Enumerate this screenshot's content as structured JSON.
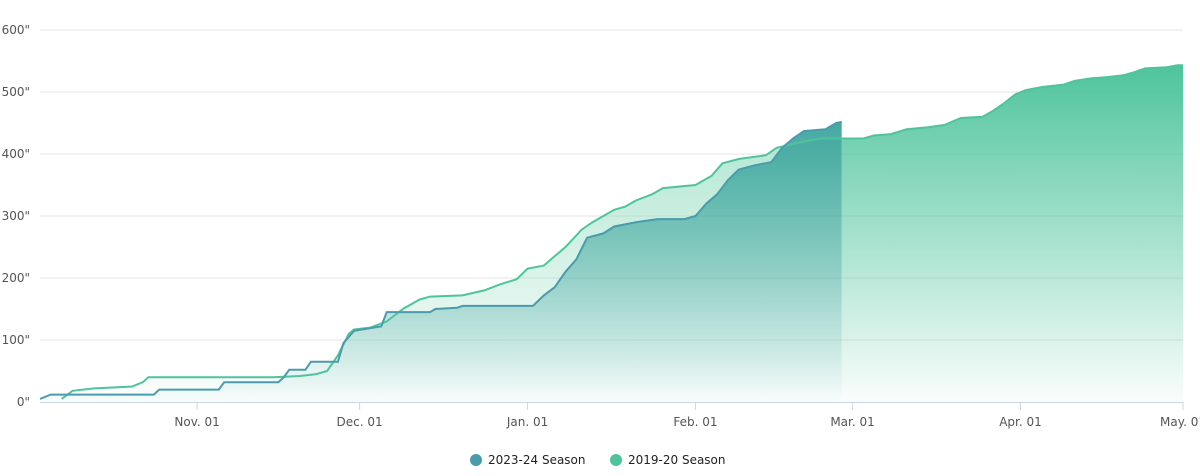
{
  "chart_data": {
    "type": "area",
    "title": "",
    "xlabel": "",
    "ylabel": "",
    "ylim": [
      0,
      600
    ],
    "y_ticks": [
      "0\"",
      "100\"",
      "200\"",
      "300\"",
      "400\"",
      "500\"",
      "600\""
    ],
    "x_ticks": [
      {
        "date": "2023-11-01",
        "label": "Nov. 01"
      },
      {
        "date": "2023-12-01",
        "label": "Dec. 01"
      },
      {
        "date": "2024-01-01",
        "label": "Jan. 01"
      },
      {
        "date": "2024-02-01",
        "label": "Feb. 01"
      },
      {
        "date": "2024-03-01",
        "label": "Mar. 01"
      },
      {
        "date": "2024-04-01",
        "label": "Apr. 01"
      },
      {
        "date": "2024-05-01",
        "label": "May. 01"
      }
    ],
    "xlim": [
      "2023-10-03",
      "2024-05-01"
    ],
    "grid": true,
    "legend_position": "bottom-center",
    "series": [
      {
        "name": "2023-24 Season",
        "color": "#4a9bab",
        "points": [
          [
            "2023-10-03",
            5
          ],
          [
            "2023-10-05",
            12
          ],
          [
            "2023-10-24",
            12
          ],
          [
            "2023-10-25",
            20
          ],
          [
            "2023-11-05",
            20
          ],
          [
            "2023-11-06",
            32
          ],
          [
            "2023-11-16",
            32
          ],
          [
            "2023-11-17",
            40
          ],
          [
            "2023-11-18",
            52
          ],
          [
            "2023-11-21",
            52
          ],
          [
            "2023-11-22",
            65
          ],
          [
            "2023-11-27",
            65
          ],
          [
            "2023-11-28",
            95
          ],
          [
            "2023-11-30",
            115
          ],
          [
            "2023-12-05",
            122
          ],
          [
            "2023-12-06",
            145
          ],
          [
            "2023-12-14",
            145
          ],
          [
            "2023-12-15",
            150
          ],
          [
            "2023-12-19",
            152
          ],
          [
            "2023-12-20",
            155
          ],
          [
            "2024-01-02",
            155
          ],
          [
            "2024-01-04",
            172
          ],
          [
            "2024-01-06",
            185
          ],
          [
            "2024-01-08",
            210
          ],
          [
            "2024-01-10",
            230
          ],
          [
            "2024-01-12",
            265
          ],
          [
            "2024-01-15",
            272
          ],
          [
            "2024-01-17",
            283
          ],
          [
            "2024-01-21",
            290
          ],
          [
            "2024-01-25",
            295
          ],
          [
            "2024-01-30",
            295
          ],
          [
            "2024-02-01",
            300
          ],
          [
            "2024-02-03",
            320
          ],
          [
            "2024-02-05",
            335
          ],
          [
            "2024-02-07",
            358
          ],
          [
            "2024-02-09",
            375
          ],
          [
            "2024-02-12",
            382
          ],
          [
            "2024-02-15",
            387
          ],
          [
            "2024-02-17",
            410
          ],
          [
            "2024-02-19",
            425
          ],
          [
            "2024-02-21",
            437
          ],
          [
            "2024-02-25",
            440
          ],
          [
            "2024-02-27",
            450
          ],
          [
            "2024-02-28",
            452
          ]
        ]
      },
      {
        "name": "2019-20 Season",
        "color": "#4fc49c",
        "points": [
          [
            "2023-10-07",
            5
          ],
          [
            "2023-10-09",
            18
          ],
          [
            "2023-10-13",
            22
          ],
          [
            "2023-10-20",
            25
          ],
          [
            "2023-10-22",
            32
          ],
          [
            "2023-10-23",
            40
          ],
          [
            "2023-11-15",
            40
          ],
          [
            "2023-11-20",
            42
          ],
          [
            "2023-11-23",
            45
          ],
          [
            "2023-11-25",
            50
          ],
          [
            "2023-11-27",
            75
          ],
          [
            "2023-11-29",
            110
          ],
          [
            "2023-11-30",
            117
          ],
          [
            "2023-12-03",
            120
          ],
          [
            "2023-12-06",
            130
          ],
          [
            "2023-12-09",
            150
          ],
          [
            "2023-12-12",
            165
          ],
          [
            "2023-12-14",
            170
          ],
          [
            "2023-12-20",
            172
          ],
          [
            "2023-12-24",
            180
          ],
          [
            "2023-12-27",
            190
          ],
          [
            "2023-12-30",
            198
          ],
          [
            "2024-01-01",
            215
          ],
          [
            "2024-01-04",
            220
          ],
          [
            "2024-01-06",
            235
          ],
          [
            "2024-01-08",
            250
          ],
          [
            "2024-01-11",
            278
          ],
          [
            "2024-01-13",
            290
          ],
          [
            "2024-01-15",
            300
          ],
          [
            "2024-01-17",
            310
          ],
          [
            "2024-01-19",
            315
          ],
          [
            "2024-01-21",
            325
          ],
          [
            "2024-01-24",
            335
          ],
          [
            "2024-01-26",
            345
          ],
          [
            "2024-02-01",
            350
          ],
          [
            "2024-02-04",
            365
          ],
          [
            "2024-02-06",
            385
          ],
          [
            "2024-02-09",
            392
          ],
          [
            "2024-02-14",
            398
          ],
          [
            "2024-02-16",
            410
          ],
          [
            "2024-02-20",
            418
          ],
          [
            "2024-02-24",
            425
          ],
          [
            "2024-02-29",
            425
          ],
          [
            "2024-03-03",
            425
          ],
          [
            "2024-03-05",
            430
          ],
          [
            "2024-03-08",
            432
          ],
          [
            "2024-03-11",
            440
          ],
          [
            "2024-03-15",
            443
          ],
          [
            "2024-03-18",
            447
          ],
          [
            "2024-03-21",
            458
          ],
          [
            "2024-03-25",
            460
          ],
          [
            "2024-03-27",
            470
          ],
          [
            "2024-03-29",
            482
          ],
          [
            "2024-03-31",
            496
          ],
          [
            "2024-04-02",
            503
          ],
          [
            "2024-04-05",
            508
          ],
          [
            "2024-04-09",
            512
          ],
          [
            "2024-04-11",
            518
          ],
          [
            "2024-04-14",
            522
          ],
          [
            "2024-04-17",
            524
          ],
          [
            "2024-04-20",
            527
          ],
          [
            "2024-04-22",
            532
          ],
          [
            "2024-04-24",
            538
          ],
          [
            "2024-04-28",
            540
          ],
          [
            "2024-04-30",
            543
          ],
          [
            "2024-05-01",
            543
          ]
        ]
      }
    ]
  }
}
